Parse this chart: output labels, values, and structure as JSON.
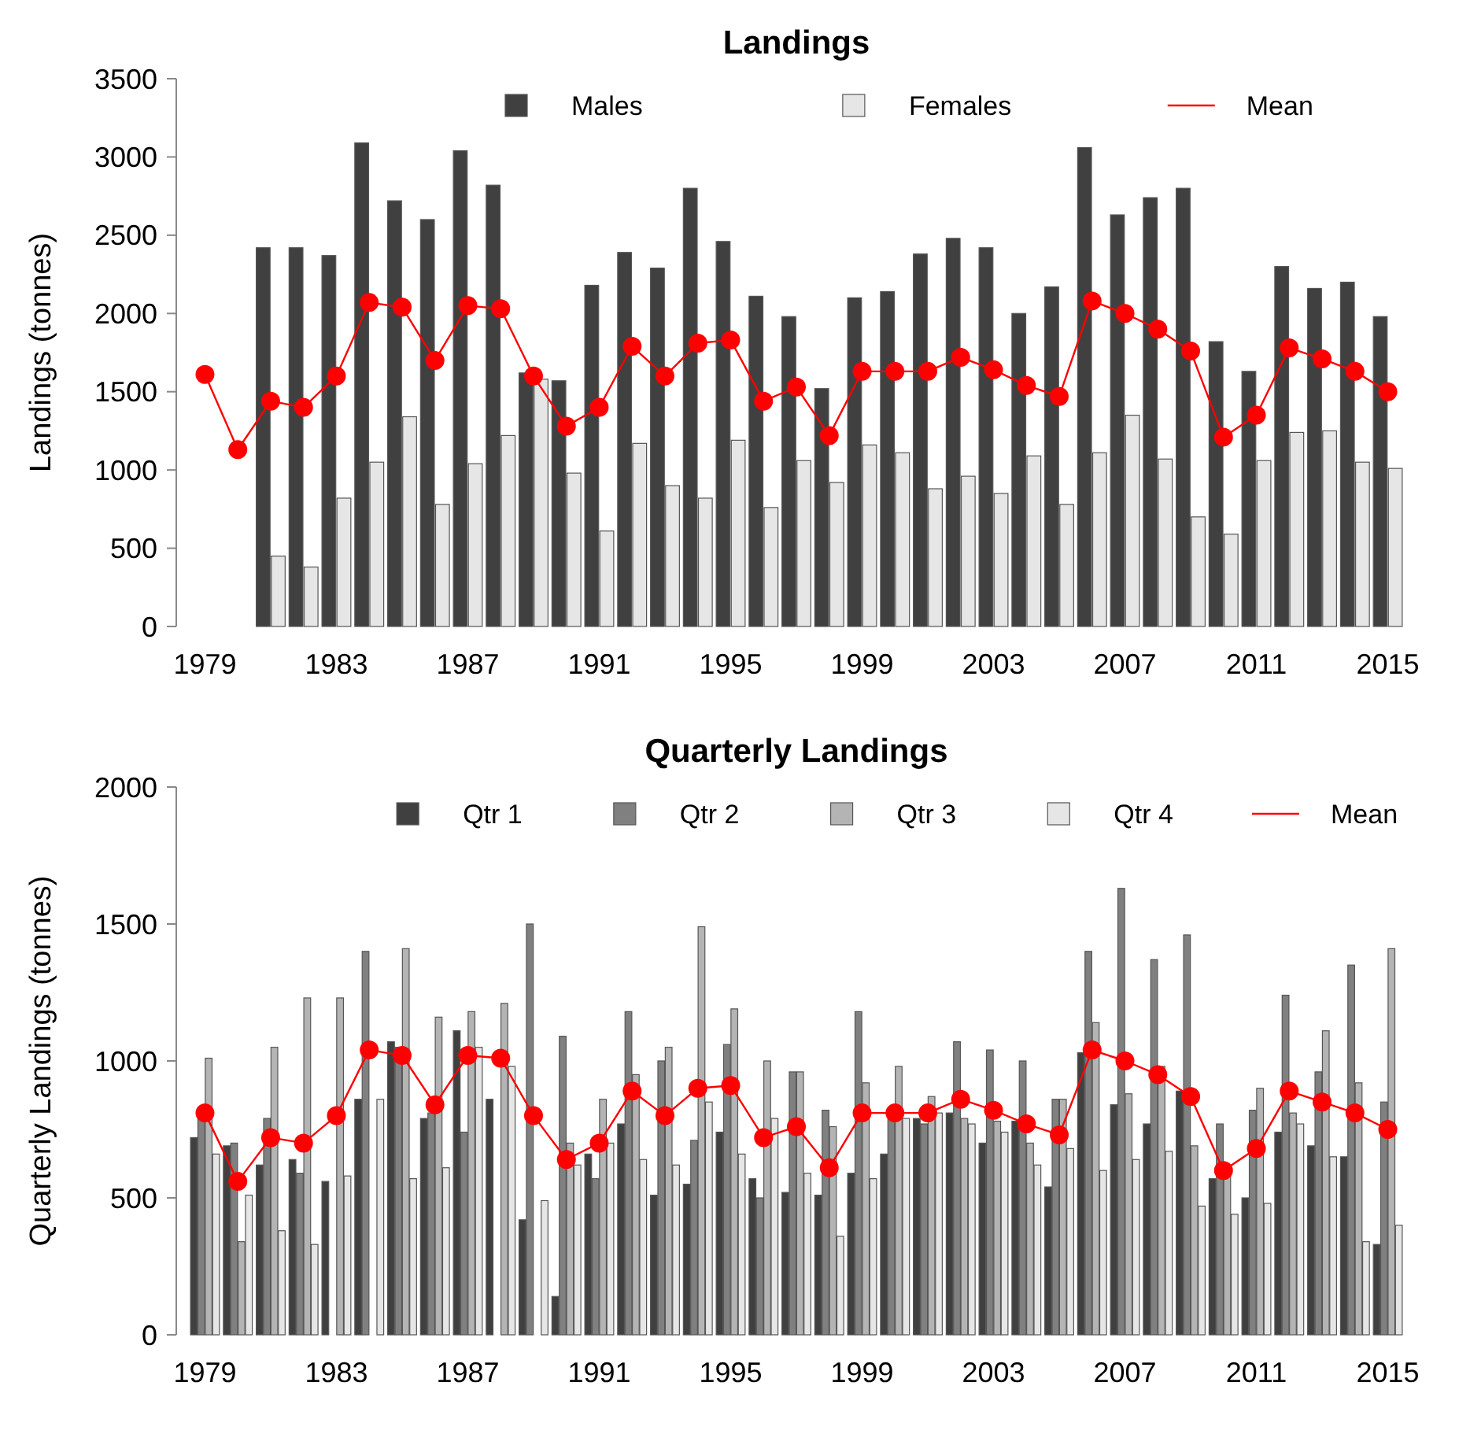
{
  "chart_data": [
    {
      "type": "bar",
      "title": "Landings",
      "ylabel": "Landings (tonnes)",
      "legend": "top",
      "ylim": [
        0,
        3500
      ],
      "yticks": [
        0,
        500,
        1000,
        1500,
        2000,
        2500,
        3000,
        3500
      ],
      "categories": [
        "1979",
        null,
        null,
        null,
        "1983",
        null,
        null,
        null,
        "1987",
        null,
        null,
        null,
        "1991",
        null,
        null,
        null,
        "1995",
        null,
        null,
        null,
        "1999",
        null,
        null,
        null,
        "2003",
        null,
        null,
        null,
        "2007",
        null,
        null,
        null,
        "2011",
        null,
        null,
        null,
        "2015"
      ],
      "series": [
        {
          "name": "Males",
          "color": "#404040",
          "values": [
            null,
            null,
            2420,
            2420,
            2370,
            3090,
            2720,
            2600,
            3040,
            2820,
            1620,
            1570,
            2180,
            2390,
            2290,
            2800,
            2460,
            2110,
            1980,
            1520,
            2100,
            2140,
            2380,
            2480,
            2420,
            2000,
            2170,
            3060,
            2630,
            2740,
            2800,
            1820,
            1630,
            2300,
            2160,
            2200,
            1980
          ]
        },
        {
          "name": "Females",
          "color": "#e6e6e6",
          "values": [
            null,
            null,
            450,
            380,
            820,
            1050,
            1340,
            780,
            1040,
            1220,
            1580,
            980,
            610,
            1170,
            900,
            820,
            1190,
            760,
            1060,
            920,
            1160,
            1110,
            880,
            960,
            850,
            1090,
            780,
            1110,
            1350,
            1070,
            700,
            590,
            1060,
            1240,
            1250,
            1050,
            1010
          ]
        },
        {
          "name": "Mean",
          "type": "line",
          "color": "#ff0000",
          "marker": "circle",
          "values": [
            1610,
            1130,
            1440,
            1400,
            1600,
            2070,
            2040,
            1700,
            2050,
            2030,
            1600,
            1280,
            1400,
            1790,
            1600,
            1810,
            1830,
            1440,
            1530,
            1220,
            1630,
            1630,
            1630,
            1720,
            1640,
            1540,
            1470,
            2080,
            2000,
            1900,
            1760,
            1210,
            1350,
            1780,
            1710,
            1630,
            1500
          ]
        }
      ]
    },
    {
      "type": "bar",
      "title": "Quarterly Landings",
      "ylabel": "Quarterly Landings (tonnes)",
      "legend": "top",
      "ylim": [
        0,
        2000
      ],
      "yticks": [
        0,
        500,
        1000,
        1500,
        2000
      ],
      "categories": [
        "1979",
        null,
        null,
        null,
        "1983",
        null,
        null,
        null,
        "1987",
        null,
        null,
        null,
        "1991",
        null,
        null,
        null,
        "1995",
        null,
        null,
        null,
        "1999",
        null,
        null,
        null,
        "2003",
        null,
        null,
        null,
        "2007",
        null,
        null,
        null,
        "2011",
        null,
        null,
        null,
        "2015"
      ],
      "series": [
        {
          "name": "Qtr 1",
          "color": "#404040",
          "values": [
            720,
            690,
            620,
            640,
            560,
            860,
            1070,
            790,
            1110,
            860,
            420,
            140,
            660,
            770,
            510,
            550,
            740,
            570,
            520,
            510,
            590,
            660,
            790,
            810,
            700,
            780,
            540,
            1030,
            840,
            770,
            890,
            570,
            500,
            740,
            690,
            650,
            330
          ]
        },
        {
          "name": "Qtr 2",
          "color": "#808080",
          "values": [
            830,
            700,
            790,
            590,
            null,
            1400,
            1050,
            810,
            740,
            null,
            1500,
            1090,
            570,
            1180,
            1000,
            710,
            1060,
            500,
            960,
            820,
            1180,
            790,
            770,
            1070,
            1040,
            1000,
            860,
            1400,
            1630,
            1370,
            1460,
            770,
            820,
            1240,
            960,
            1350,
            850
          ]
        },
        {
          "name": "Qtr 3",
          "color": "#b4b4b4",
          "values": [
            1010,
            340,
            1050,
            1230,
            1230,
            null,
            1410,
            1160,
            1180,
            1210,
            null,
            700,
            860,
            950,
            1050,
            1490,
            1190,
            1000,
            960,
            760,
            920,
            980,
            870,
            790,
            780,
            700,
            860,
            1140,
            880,
            980,
            690,
            580,
            900,
            810,
            1110,
            920,
            1410
          ]
        },
        {
          "name": "Qtr 4",
          "color": "#e6e6e6",
          "values": [
            660,
            510,
            380,
            330,
            580,
            860,
            570,
            610,
            1050,
            980,
            490,
            620,
            700,
            640,
            620,
            850,
            660,
            790,
            590,
            360,
            570,
            790,
            810,
            770,
            740,
            620,
            680,
            600,
            640,
            670,
            470,
            440,
            480,
            770,
            650,
            340,
            400
          ]
        },
        {
          "name": "Mean",
          "type": "line",
          "color": "#ff0000",
          "marker": "circle",
          "values": [
            810,
            560,
            720,
            700,
            800,
            1040,
            1020,
            840,
            1020,
            1010,
            800,
            640,
            700,
            890,
            800,
            900,
            910,
            720,
            760,
            610,
            810,
            810,
            810,
            860,
            820,
            770,
            730,
            1040,
            1000,
            950,
            870,
            600,
            680,
            890,
            850,
            810,
            750
          ]
        }
      ]
    }
  ]
}
